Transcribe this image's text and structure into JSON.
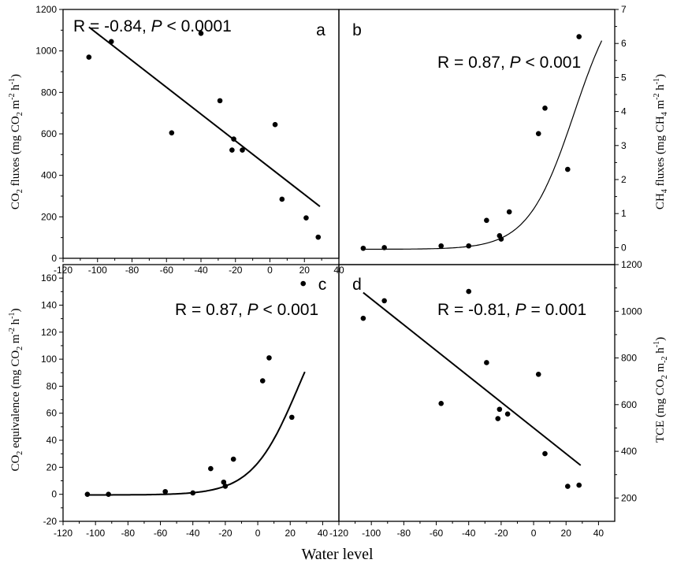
{
  "figure": {
    "xlabel": "Water level"
  },
  "chart_data": [
    {
      "id": "a",
      "type": "scatter",
      "panel_label": "a",
      "annotation": {
        "pre": "R = -0.84, ",
        "P": "P",
        "post": " < 0.0001"
      },
      "xlim": [
        -120,
        40
      ],
      "xticks": [
        -120,
        -100,
        -80,
        -60,
        -40,
        -20,
        0,
        20,
        40
      ],
      "ylim": [
        0,
        1200
      ],
      "yticks": [
        0,
        200,
        400,
        600,
        800,
        1000,
        1200
      ],
      "y_axis_side": "left",
      "ylabel": {
        "p1": "CO",
        "s1": "2",
        "p2": "  fluxes (mg CO",
        "s2": "2",
        "p3": " m",
        "s3": "-2",
        "p4": " h",
        "s4": "-1",
        "p5": ")"
      },
      "points": [
        [
          -105,
          970
        ],
        [
          -92,
          1045
        ],
        [
          -57,
          605
        ],
        [
          -40,
          1085
        ],
        [
          -29,
          760
        ],
        [
          -21,
          575
        ],
        [
          -22,
          522
        ],
        [
          -16,
          522
        ],
        [
          3,
          645
        ],
        [
          7,
          285
        ],
        [
          21,
          195
        ],
        [
          28,
          102
        ]
      ],
      "fit": {
        "kind": "linear",
        "x": [
          -105,
          29
        ],
        "y": [
          1115,
          250
        ]
      }
    },
    {
      "id": "b",
      "type": "scatter",
      "panel_label": "b",
      "annotation": {
        "pre": "R = 0.87, ",
        "P": "P",
        "post": " < 0.001"
      },
      "xlim": [
        -120,
        50
      ],
      "xticks": [],
      "ylim": [
        -0.5,
        7
      ],
      "yticks": [
        0,
        1,
        2,
        3,
        4,
        5,
        6,
        7
      ],
      "y_axis_side": "right",
      "ylabel": {
        "p1": "CH",
        "s1": "4",
        "p2": "  fluxes (mg CH",
        "s2": "4",
        "p3": " m",
        "s3": "-2",
        "p4": " h",
        "s4": "-1",
        "p5": ")"
      },
      "points": [
        [
          -105,
          -0.02
        ],
        [
          -92,
          0
        ],
        [
          -57,
          0.05
        ],
        [
          -40,
          0.05
        ],
        [
          -29,
          0.8
        ],
        [
          -21,
          0.35
        ],
        [
          -20,
          0.25
        ],
        [
          -15,
          1.05
        ],
        [
          3,
          3.35
        ],
        [
          7,
          4.1
        ],
        [
          21,
          2.3
        ],
        [
          28,
          6.2
        ]
      ],
      "fit": {
        "kind": "logistic",
        "K": 8,
        "r": 0.07,
        "x0": 25,
        "base": -0.05,
        "x_range": [
          -105,
          42
        ]
      }
    },
    {
      "id": "c",
      "type": "scatter",
      "panel_label": "c",
      "annotation": {
        "pre": "R = 0.87, ",
        "P": "P",
        "post": " < 0.001"
      },
      "xlim": [
        -120,
        50
      ],
      "xticks": [
        -120,
        -100,
        -80,
        -60,
        -40,
        -20,
        0,
        20,
        40
      ],
      "ylim": [
        -20,
        170
      ],
      "yticks": [
        -20,
        0,
        20,
        40,
        60,
        80,
        100,
        120,
        140,
        160
      ],
      "y_axis_side": "left",
      "ylabel": {
        "p1": "CO",
        "s1": "2",
        "p2": " equivalence (mg CO",
        "s2": "2",
        "p3": " m",
        "s3": "-2",
        "p4": " h",
        "s4": "-1",
        "p5": ")"
      },
      "points": [
        [
          -105,
          0
        ],
        [
          -92,
          0
        ],
        [
          -57,
          2
        ],
        [
          -40,
          1
        ],
        [
          -29,
          19
        ],
        [
          -21,
          9
        ],
        [
          -20,
          6
        ],
        [
          -15,
          26
        ],
        [
          3,
          84
        ],
        [
          7,
          101
        ],
        [
          21,
          57
        ],
        [
          28,
          156
        ]
      ],
      "fit": {
        "kind": "logistic",
        "K": 160,
        "r": 0.07,
        "x0": 25,
        "base": -0.5,
        "x_range": [
          -105,
          29
        ]
      }
    },
    {
      "id": "d",
      "type": "scatter",
      "panel_label": "d",
      "annotation": {
        "pre": "R = -0.81, ",
        "P": "P",
        "post": " = 0.001"
      },
      "xlim": [
        -120,
        50
      ],
      "xticks": [
        -120,
        -100,
        -80,
        -60,
        -40,
        -20,
        0,
        20,
        40
      ],
      "ylim": [
        100,
        1200
      ],
      "yticks": [
        200,
        400,
        600,
        800,
        1000,
        1200
      ],
      "y_axis_side": "right",
      "ylabel": {
        "p1": "TCE (mg CO",
        "s1": "2",
        "p2": " m",
        "s2": "-2",
        "p3": " h",
        "s3": "-1",
        "p4": ")",
        "s4": "",
        "p5": ""
      },
      "points": [
        [
          -105,
          970
        ],
        [
          -92,
          1045
        ],
        [
          -57,
          605
        ],
        [
          -40,
          1085
        ],
        [
          -29,
          780
        ],
        [
          -21,
          580
        ],
        [
          -22,
          540
        ],
        [
          -16,
          560
        ],
        [
          3,
          730
        ],
        [
          7,
          390
        ],
        [
          21,
          250
        ],
        [
          28,
          255
        ]
      ],
      "fit": {
        "kind": "linear",
        "x": [
          -105,
          29
        ],
        "y": [
          1080,
          340
        ]
      }
    }
  ]
}
